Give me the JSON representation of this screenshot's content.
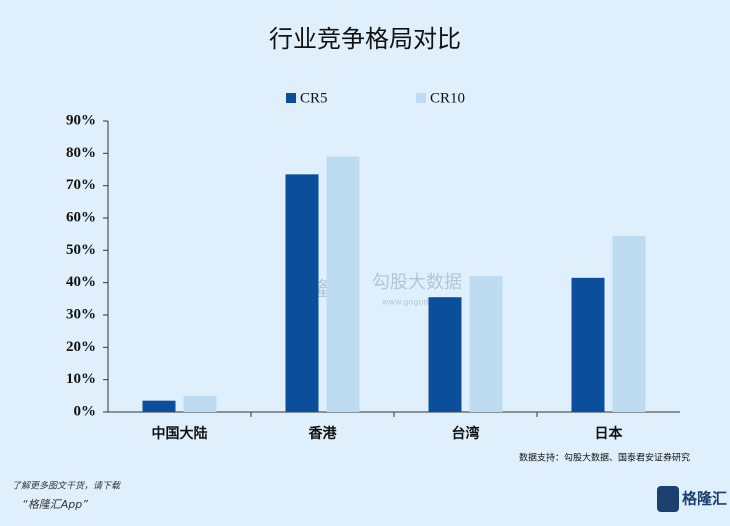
{
  "chart_data": {
    "type": "bar",
    "title": "行业竞争格局对比",
    "categories": [
      "中国大陆",
      "香港",
      "台湾",
      "日本"
    ],
    "series": [
      {
        "name": "CR5",
        "color": "#0b4f9c",
        "values": [
          3.5,
          73.5,
          35.5,
          41.5
        ]
      },
      {
        "name": "CR10",
        "color": "#bddcf2",
        "values": [
          5,
          79,
          42,
          54.5
        ]
      }
    ],
    "ylim": [
      0,
      90
    ],
    "yticks": [
      {
        "value": 0,
        "label": "0%"
      },
      {
        "value": 10,
        "label": "10%"
      },
      {
        "value": 20,
        "label": "20%"
      },
      {
        "value": 30,
        "label": "30%"
      },
      {
        "value": 40,
        "label": "40%"
      },
      {
        "value": 50,
        "label": "50%"
      },
      {
        "value": 60,
        "label": "60%"
      },
      {
        "value": 70,
        "label": "70%"
      },
      {
        "value": 80,
        "label": "80%"
      },
      {
        "value": 90,
        "label": "90%"
      }
    ],
    "legend": "top",
    "source": "数据支持：勾股大数据、国泰君安证券研究",
    "watermark": [
      "格隆汇",
      "勾股大数据",
      "www.gogudata.com"
    ]
  },
  "footer": {
    "note": "了解更多图文干货，请下载",
    "app": "“格隆汇App”",
    "logo": "格隆汇"
  }
}
